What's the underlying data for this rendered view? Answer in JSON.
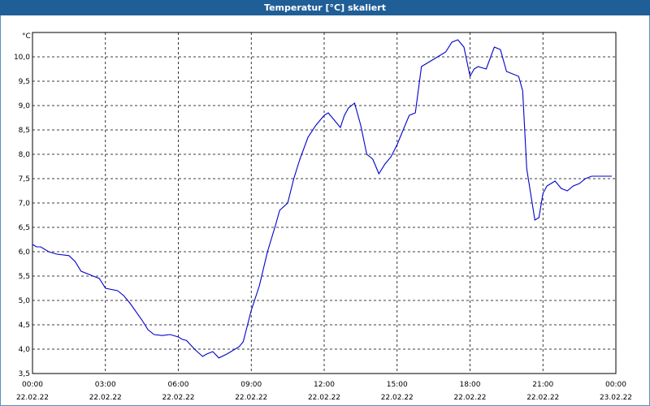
{
  "window": {
    "title": "Temperatur [°C] skaliert"
  },
  "colors": {
    "title_bar": "#1f5e96",
    "line": "#0000cc",
    "grid": "#000000",
    "background": "#ffffff"
  },
  "chart_data": {
    "type": "line",
    "title": "Temperatur [°C] skaliert",
    "ylabel": "°C",
    "xlabel": "",
    "ylim": [
      3.5,
      10.5
    ],
    "yticks": [
      "3,5",
      "4,0",
      "4,5",
      "5,0",
      "5,5",
      "6,0",
      "6,5",
      "7,0",
      "7,5",
      "8,0",
      "8,5",
      "9,0",
      "9,5",
      "10,0"
    ],
    "xticks": [
      {
        "time": "00:00",
        "date": "22.02.22"
      },
      {
        "time": "03:00",
        "date": "22.02.22"
      },
      {
        "time": "06:00",
        "date": "22.02.22"
      },
      {
        "time": "09:00",
        "date": "22.02.22"
      },
      {
        "time": "12:00",
        "date": "22.02.22"
      },
      {
        "time": "15:00",
        "date": "22.02.22"
      },
      {
        "time": "18:00",
        "date": "22.02.22"
      },
      {
        "time": "21:00",
        "date": "22.02.22"
      },
      {
        "time": "00:00",
        "date": "23.02.22"
      }
    ],
    "grid": true,
    "grid_style": "dashed",
    "legend": "none",
    "series": [
      {
        "x": [
          "00:00",
          "00:10",
          "00:20",
          "00:40",
          "01:00",
          "01:30",
          "01:45",
          "02:00",
          "02:30",
          "02:45",
          "03:00",
          "03:30",
          "03:45",
          "04:00",
          "04:30",
          "04:45",
          "05:00",
          "05:20",
          "05:40",
          "06:00",
          "06:10",
          "06:20",
          "06:40",
          "07:00",
          "07:10",
          "07:25",
          "07:40",
          "08:00",
          "08:30",
          "08:40",
          "09:00",
          "09:20",
          "09:40",
          "10:00",
          "10:10",
          "10:30",
          "10:45",
          "11:00",
          "11:20",
          "11:40",
          "12:00",
          "12:10",
          "12:20",
          "12:40",
          "12:50",
          "13:00",
          "13:15",
          "13:30",
          "13:45",
          "14:00",
          "14:15",
          "14:30",
          "14:45",
          "15:00",
          "15:15",
          "15:30",
          "15:45",
          "16:00",
          "16:20",
          "16:40",
          "17:00",
          "17:15",
          "17:30",
          "17:45",
          "18:00",
          "18:10",
          "18:20",
          "18:40",
          "19:00",
          "19:15",
          "19:30",
          "19:45",
          "20:00",
          "20:10",
          "20:20",
          "20:40",
          "20:50",
          "21:00",
          "21:10",
          "21:20",
          "21:30",
          "21:45",
          "22:00",
          "22:15",
          "22:30",
          "22:45",
          "23:00",
          "23:20",
          "23:40",
          "23:50"
        ],
        "values": [
          6.15,
          6.1,
          6.1,
          6.0,
          5.95,
          5.92,
          5.8,
          5.6,
          5.5,
          5.45,
          5.25,
          5.2,
          5.1,
          4.95,
          4.6,
          4.4,
          4.3,
          4.28,
          4.3,
          4.25,
          4.2,
          4.18,
          4.0,
          3.85,
          3.9,
          3.95,
          3.82,
          3.9,
          4.05,
          4.15,
          4.8,
          5.3,
          6.0,
          6.55,
          6.85,
          7.0,
          7.5,
          7.9,
          8.35,
          8.6,
          8.8,
          8.85,
          8.75,
          8.55,
          8.8,
          8.95,
          9.05,
          8.6,
          8.0,
          7.9,
          7.6,
          7.8,
          7.95,
          8.2,
          8.5,
          8.8,
          8.85,
          9.8,
          9.9,
          10.0,
          10.1,
          10.3,
          10.35,
          10.2,
          9.6,
          9.75,
          9.8,
          9.75,
          10.2,
          10.15,
          9.7,
          9.65,
          9.6,
          9.3,
          7.7,
          6.65,
          6.7,
          7.2,
          7.35,
          7.4,
          7.45,
          7.3,
          7.25,
          7.35,
          7.4,
          7.5,
          7.55,
          7.55,
          7.55,
          7.55
        ]
      }
    ]
  }
}
